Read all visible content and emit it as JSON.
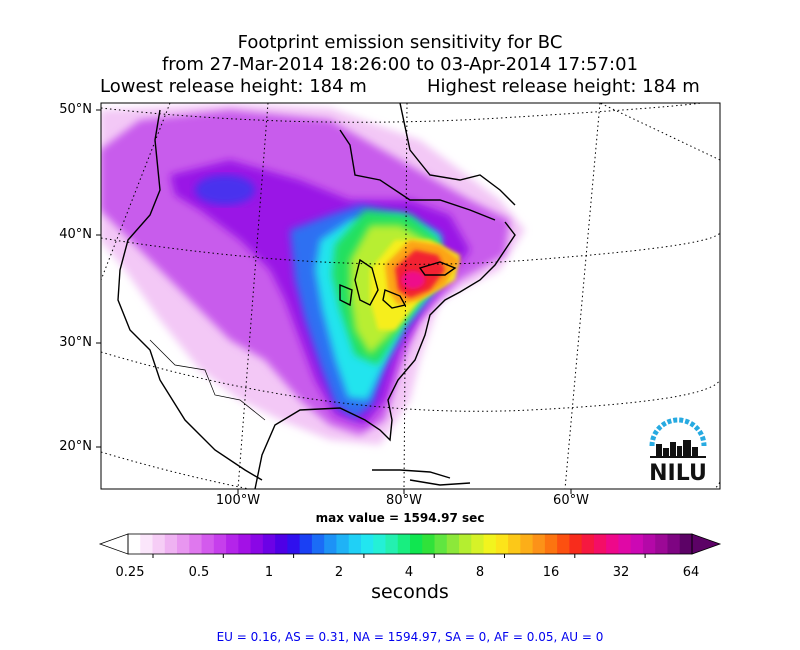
{
  "title": {
    "line1": "Footprint emission sensitivity for BC",
    "line2": "from 27-Mar-2014 18:26:00 to 03-Apr-2014 17:57:01",
    "line3_left": "Lowest release height: 184 m",
    "line3_right": "Highest release height: 184 m"
  },
  "map": {
    "lat_labels": [
      "50°N",
      "40°N",
      "30°N",
      "20°N"
    ],
    "lon_labels": [
      "100°W",
      "80°W",
      "60°W"
    ],
    "max_value_text": "max value = 1594.97 sec",
    "logo_text": "NILU"
  },
  "colorbar": {
    "ticks": [
      "0.25",
      "0.5",
      "1",
      "2",
      "4",
      "8",
      "16",
      "32",
      "64"
    ],
    "units": "seconds",
    "colors": [
      "#ffffff",
      "#fbe6fb",
      "#f6cdf6",
      "#efb2f2",
      "#e896f0",
      "#df78ee",
      "#d35aed",
      "#c63fec",
      "#b424ea",
      "#a311e6",
      "#8a07e6",
      "#6c02e6",
      "#4e00e6",
      "#3010ee",
      "#1a40f4",
      "#1b6cf6",
      "#1d92f6",
      "#1fb2f6",
      "#20d0f6",
      "#22e6f0",
      "#24f0d6",
      "#24f0b0",
      "#18ee80",
      "#10e650",
      "#30e23a",
      "#60e640",
      "#8ce83a",
      "#b4ee30",
      "#d6f228",
      "#f2f41e",
      "#fce41a",
      "#fcc818",
      "#fcae18",
      "#fc9218",
      "#fc7410",
      "#fc5010",
      "#f82c1c",
      "#f61840",
      "#f40e66",
      "#ee088a",
      "#e008a6",
      "#cc08b4",
      "#b408a8",
      "#9c0896",
      "#7e0482",
      "#5c0266"
    ]
  },
  "regions_text": "EU = 0.16,  AS = 0.31,  NA = 1594.97,  SA = 0,  AF = 0.05,  AU = 0"
}
